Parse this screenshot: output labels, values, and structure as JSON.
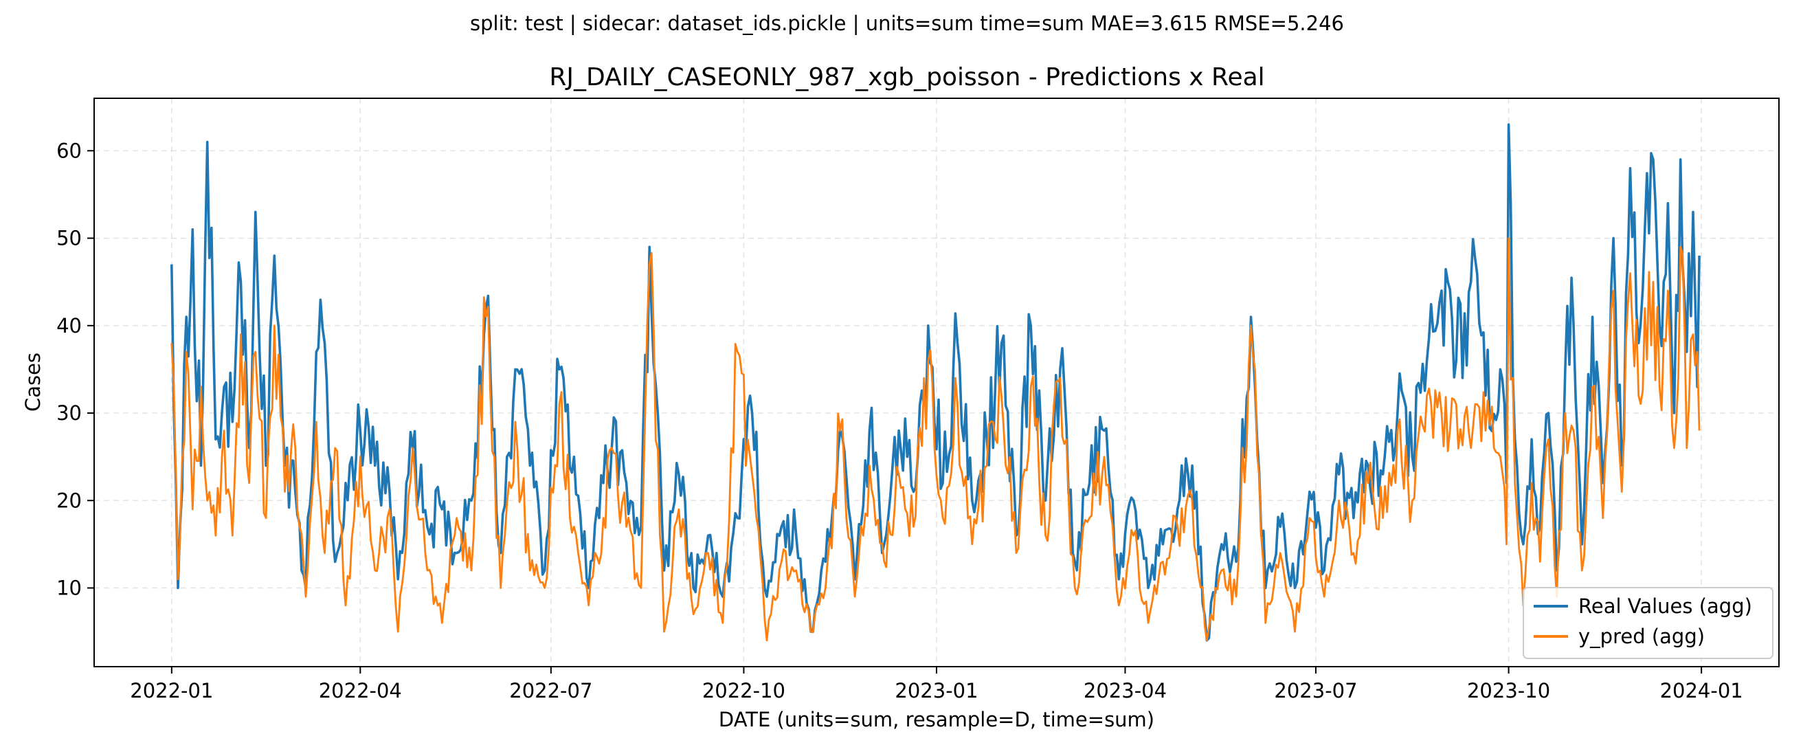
{
  "chart_data": {
    "type": "line",
    "suptitle": "split: test | sidecar: dataset_ids.pickle | units=sum  time=sum  MAE=3.615  RMSE=5.246",
    "title": "RJ_DAILY_CASEONLY_987_xgb_poisson - Predictions x Real",
    "xlabel": "DATE (units=sum, resample=D, time=sum)",
    "ylabel": "Cases",
    "xlim": [
      "2021-11-25",
      "2024-02-07"
    ],
    "ylim": [
      1,
      66
    ],
    "xticks": [
      "2022-01",
      "2022-04",
      "2022-07",
      "2022-10",
      "2023-01",
      "2023-04",
      "2023-07",
      "2023-10",
      "2024-01"
    ],
    "yticks": [
      10,
      20,
      30,
      40,
      50,
      60
    ],
    "grid": true,
    "legend": "lower right",
    "x_start": "2022-01-01",
    "x_end": "2023-12-31",
    "series": [
      {
        "name": "Real Values (agg)",
        "color": "#1f77b4",
        "points": [
          [
            "2022-01-01",
            47
          ],
          [
            "2022-01-04",
            10
          ],
          [
            "2022-01-08",
            41
          ],
          [
            "2022-01-11",
            51
          ],
          [
            "2022-01-15",
            24
          ],
          [
            "2022-01-18",
            61
          ],
          [
            "2022-01-22",
            27
          ],
          [
            "2022-01-26",
            33
          ],
          [
            "2022-01-30",
            29
          ],
          [
            "2022-02-03",
            45
          ],
          [
            "2022-02-07",
            26
          ],
          [
            "2022-02-10",
            53
          ],
          [
            "2022-02-15",
            24
          ],
          [
            "2022-02-19",
            48
          ],
          [
            "2022-02-24",
            24
          ],
          [
            "2022-03-01",
            21
          ],
          [
            "2022-03-06",
            10
          ],
          [
            "2022-03-11",
            37
          ],
          [
            "2022-03-15",
            38
          ],
          [
            "2022-03-20",
            13
          ],
          [
            "2022-03-25",
            22
          ],
          [
            "2022-04-01",
            28
          ],
          [
            "2022-04-08",
            24
          ],
          [
            "2022-04-15",
            21
          ],
          [
            "2022-04-19",
            11
          ],
          [
            "2022-04-26",
            26
          ],
          [
            "2022-05-03",
            17
          ],
          [
            "2022-05-10",
            19
          ],
          [
            "2022-05-17",
            14
          ],
          [
            "2022-05-24",
            20
          ],
          [
            "2022-05-31",
            42
          ],
          [
            "2022-06-07",
            14
          ],
          [
            "2022-06-14",
            35
          ],
          [
            "2022-06-21",
            24
          ],
          [
            "2022-06-28",
            12
          ],
          [
            "2022-07-05",
            35
          ],
          [
            "2022-07-12",
            25
          ],
          [
            "2022-07-19",
            10
          ],
          [
            "2022-07-26",
            22
          ],
          [
            "2022-07-30",
            26
          ],
          [
            "2022-08-06",
            22
          ],
          [
            "2022-08-13",
            17
          ],
          [
            "2022-08-17",
            49
          ],
          [
            "2022-08-24",
            12
          ],
          [
            "2022-08-31",
            23
          ],
          [
            "2022-09-07",
            10
          ],
          [
            "2022-09-14",
            16
          ],
          [
            "2022-09-21",
            9
          ],
          [
            "2022-09-28",
            18
          ],
          [
            "2022-10-05",
            30
          ],
          [
            "2022-10-12",
            9
          ],
          [
            "2022-10-19",
            17
          ],
          [
            "2022-10-26",
            16
          ],
          [
            "2022-11-02",
            5
          ],
          [
            "2022-11-09",
            13
          ],
          [
            "2022-11-16",
            28
          ],
          [
            "2022-11-23",
            11
          ],
          [
            "2022-11-30",
            28
          ],
          [
            "2022-12-07",
            15
          ],
          [
            "2022-12-14",
            28
          ],
          [
            "2022-12-21",
            21
          ],
          [
            "2022-12-28",
            40
          ],
          [
            "2023-01-04",
            22
          ],
          [
            "2023-01-11",
            38
          ],
          [
            "2023-01-18",
            20
          ],
          [
            "2023-01-25",
            27
          ],
          [
            "2023-02-01",
            38
          ],
          [
            "2023-02-08",
            16
          ],
          [
            "2023-02-15",
            40
          ],
          [
            "2023-02-22",
            20
          ],
          [
            "2023-03-01",
            35
          ],
          [
            "2023-03-08",
            13
          ],
          [
            "2023-03-15",
            22
          ],
          [
            "2023-03-22",
            28
          ],
          [
            "2023-03-29",
            11
          ],
          [
            "2023-04-05",
            20
          ],
          [
            "2023-04-12",
            10
          ],
          [
            "2023-04-19",
            15
          ],
          [
            "2023-04-26",
            19
          ],
          [
            "2023-05-03",
            24
          ],
          [
            "2023-05-10",
            4
          ],
          [
            "2023-05-17",
            15
          ],
          [
            "2023-05-24",
            13
          ],
          [
            "2023-05-31",
            41
          ],
          [
            "2023-06-07",
            10
          ],
          [
            "2023-06-14",
            17
          ],
          [
            "2023-06-21",
            10
          ],
          [
            "2023-06-28",
            21
          ],
          [
            "2023-07-05",
            12
          ],
          [
            "2023-07-12",
            23
          ],
          [
            "2023-07-19",
            18
          ],
          [
            "2023-07-26",
            24
          ],
          [
            "2023-08-02",
            23
          ],
          [
            "2023-08-09",
            30
          ],
          [
            "2023-08-16",
            25
          ],
          [
            "2023-08-23",
            36
          ],
          [
            "2023-08-30",
            44
          ],
          [
            "2023-09-06",
            36
          ],
          [
            "2023-09-13",
            45
          ],
          [
            "2023-09-20",
            32
          ],
          [
            "2023-09-27",
            35
          ],
          [
            "2023-09-30",
            22
          ],
          [
            "2023-10-01",
            63
          ],
          [
            "2023-10-04",
            27
          ],
          [
            "2023-10-08",
            15
          ],
          [
            "2023-10-12",
            27
          ],
          [
            "2023-10-16",
            17
          ],
          [
            "2023-10-20",
            30
          ],
          [
            "2023-10-24",
            12
          ],
          [
            "2023-10-28",
            35
          ],
          [
            "2023-11-01",
            40
          ],
          [
            "2023-11-05",
            15
          ],
          [
            "2023-11-10",
            41
          ],
          [
            "2023-11-15",
            22
          ],
          [
            "2023-11-20",
            50
          ],
          [
            "2023-11-24",
            24
          ],
          [
            "2023-11-28",
            58
          ],
          [
            "2023-12-02",
            38
          ],
          [
            "2023-12-05",
            51
          ],
          [
            "2023-12-09",
            59
          ],
          [
            "2023-12-12",
            40
          ],
          [
            "2023-12-16",
            54
          ],
          [
            "2023-12-19",
            30
          ],
          [
            "2023-12-22",
            59
          ],
          [
            "2023-12-25",
            37
          ],
          [
            "2023-12-28",
            53
          ],
          [
            "2023-12-30",
            33
          ],
          [
            "2023-12-31",
            48
          ]
        ]
      },
      {
        "name": "y_pred (agg)",
        "color": "#ff7f0e",
        "points": [
          [
            "2022-01-01",
            38
          ],
          [
            "2022-01-04",
            11
          ],
          [
            "2022-01-08",
            37
          ],
          [
            "2022-01-11",
            19
          ],
          [
            "2022-01-15",
            33
          ],
          [
            "2022-01-18",
            20
          ],
          [
            "2022-01-22",
            16
          ],
          [
            "2022-01-26",
            28
          ],
          [
            "2022-01-30",
            16
          ],
          [
            "2022-02-03",
            39
          ],
          [
            "2022-02-07",
            22
          ],
          [
            "2022-02-10",
            37
          ],
          [
            "2022-02-15",
            18
          ],
          [
            "2022-02-19",
            40
          ],
          [
            "2022-02-24",
            21
          ],
          [
            "2022-03-01",
            26
          ],
          [
            "2022-03-06",
            9
          ],
          [
            "2022-03-11",
            29
          ],
          [
            "2022-03-15",
            14
          ],
          [
            "2022-03-20",
            26
          ],
          [
            "2022-03-25",
            8
          ],
          [
            "2022-04-01",
            25
          ],
          [
            "2022-04-08",
            12
          ],
          [
            "2022-04-15",
            19
          ],
          [
            "2022-04-19",
            5
          ],
          [
            "2022-04-26",
            26
          ],
          [
            "2022-05-03",
            12
          ],
          [
            "2022-05-10",
            6
          ],
          [
            "2022-05-17",
            18
          ],
          [
            "2022-05-24",
            12
          ],
          [
            "2022-05-31",
            41
          ],
          [
            "2022-06-07",
            10
          ],
          [
            "2022-06-14",
            29
          ],
          [
            "2022-06-21",
            12
          ],
          [
            "2022-06-28",
            10
          ],
          [
            "2022-07-05",
            31
          ],
          [
            "2022-07-12",
            17
          ],
          [
            "2022-07-19",
            8
          ],
          [
            "2022-07-26",
            18
          ],
          [
            "2022-07-30",
            26
          ],
          [
            "2022-08-06",
            17
          ],
          [
            "2022-08-13",
            10
          ],
          [
            "2022-08-17",
            47
          ],
          [
            "2022-08-24",
            5
          ],
          [
            "2022-08-31",
            19
          ],
          [
            "2022-09-07",
            7
          ],
          [
            "2022-09-14",
            14
          ],
          [
            "2022-09-21",
            6
          ],
          [
            "2022-09-28",
            37
          ],
          [
            "2022-10-05",
            23
          ],
          [
            "2022-10-12",
            4
          ],
          [
            "2022-10-19",
            13
          ],
          [
            "2022-10-26",
            12
          ],
          [
            "2022-11-02",
            5
          ],
          [
            "2022-11-09",
            10
          ],
          [
            "2022-11-16",
            28
          ],
          [
            "2022-11-23",
            9
          ],
          [
            "2022-11-30",
            24
          ],
          [
            "2022-12-07",
            13
          ],
          [
            "2022-12-14",
            23
          ],
          [
            "2022-12-21",
            17
          ],
          [
            "2022-12-28",
            36
          ],
          [
            "2023-01-04",
            18
          ],
          [
            "2023-01-11",
            31
          ],
          [
            "2023-01-18",
            15
          ],
          [
            "2023-01-25",
            24
          ],
          [
            "2023-02-01",
            32
          ],
          [
            "2023-02-08",
            14
          ],
          [
            "2023-02-15",
            33
          ],
          [
            "2023-02-22",
            16
          ],
          [
            "2023-03-01",
            34
          ],
          [
            "2023-03-08",
            10
          ],
          [
            "2023-03-15",
            18
          ],
          [
            "2023-03-22",
            25
          ],
          [
            "2023-03-29",
            8
          ],
          [
            "2023-04-05",
            16
          ],
          [
            "2023-04-12",
            6
          ],
          [
            "2023-04-19",
            13
          ],
          [
            "2023-04-26",
            17
          ],
          [
            "2023-05-03",
            20
          ],
          [
            "2023-05-10",
            4
          ],
          [
            "2023-05-17",
            12
          ],
          [
            "2023-05-24",
            9
          ],
          [
            "2023-05-31",
            40
          ],
          [
            "2023-06-07",
            6
          ],
          [
            "2023-06-14",
            14
          ],
          [
            "2023-06-21",
            5
          ],
          [
            "2023-06-28",
            18
          ],
          [
            "2023-07-05",
            9
          ],
          [
            "2023-07-12",
            20
          ],
          [
            "2023-07-19",
            14
          ],
          [
            "2023-07-26",
            22
          ],
          [
            "2023-08-02",
            18
          ],
          [
            "2023-08-09",
            28
          ],
          [
            "2023-08-16",
            20
          ],
          [
            "2023-08-23",
            32
          ],
          [
            "2023-08-30",
            30
          ],
          [
            "2023-09-06",
            31
          ],
          [
            "2023-09-13",
            26
          ],
          [
            "2023-09-20",
            28
          ],
          [
            "2023-09-27",
            25
          ],
          [
            "2023-09-30",
            15
          ],
          [
            "2023-10-01",
            50
          ],
          [
            "2023-10-04",
            22
          ],
          [
            "2023-10-08",
            8
          ],
          [
            "2023-10-12",
            22
          ],
          [
            "2023-10-16",
            13
          ],
          [
            "2023-10-20",
            27
          ],
          [
            "2023-10-24",
            9
          ],
          [
            "2023-10-28",
            30
          ],
          [
            "2023-11-01",
            28
          ],
          [
            "2023-11-05",
            12
          ],
          [
            "2023-11-10",
            33
          ],
          [
            "2023-11-15",
            18
          ],
          [
            "2023-11-20",
            44
          ],
          [
            "2023-11-24",
            21
          ],
          [
            "2023-11-28",
            46
          ],
          [
            "2023-12-02",
            32
          ],
          [
            "2023-12-05",
            42
          ],
          [
            "2023-12-09",
            45
          ],
          [
            "2023-12-12",
            33
          ],
          [
            "2023-12-16",
            44
          ],
          [
            "2023-12-19",
            26
          ],
          [
            "2023-12-22",
            49
          ],
          [
            "2023-12-25",
            26
          ],
          [
            "2023-12-28",
            39
          ],
          [
            "2023-12-30",
            37
          ],
          [
            "2023-12-31",
            28
          ]
        ]
      }
    ]
  }
}
